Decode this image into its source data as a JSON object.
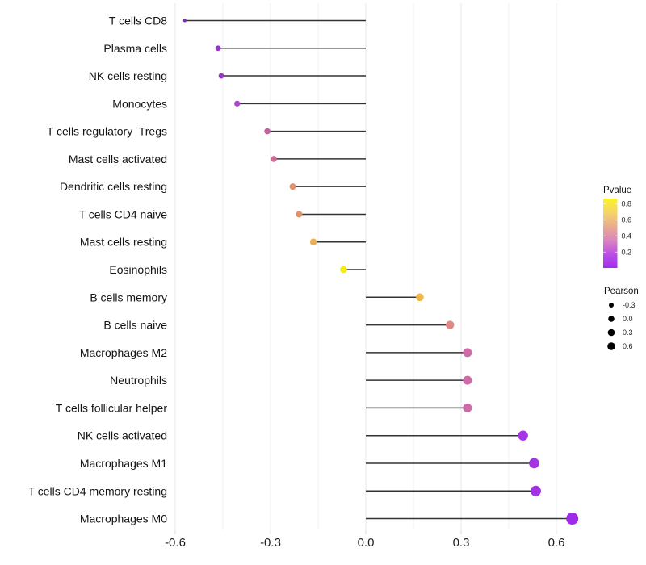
{
  "figure": {
    "background": "#FFFFFF",
    "stem_color": "#333333",
    "gridline_major_color": "#E7E7E7",
    "gridline_minor_color": "#F2F2F2",
    "axis_tick_color": "#DCDCDC"
  },
  "chart_data": {
    "type": "lollipop",
    "title": "",
    "xlabel": "",
    "ylabel": "",
    "orientation": "horizontal",
    "x_range": [
      -0.635,
      0.71
    ],
    "x_ticks": [
      -0.6,
      -0.3,
      0.0,
      0.3,
      0.6
    ],
    "x_tick_labels": [
      "-0.6",
      "-0.3",
      "0.0",
      "0.3",
      "0.6"
    ],
    "x_minor_gridlines": [
      -0.45,
      -0.15,
      0.15,
      0.45
    ],
    "grid": true,
    "color_encoding": "Pvalue",
    "size_encoding": "Pearson",
    "categories": [
      "T cells CD8",
      "Plasma cells",
      "NK cells resting",
      "Monocytes",
      "T cells regulatory  Tregs",
      "Mast cells activated",
      "Dendritic cells resting",
      "T cells CD4 naive",
      "Mast cells resting",
      "Eosinophils",
      "B cells memory",
      "B cells naive",
      "Macrophages M2",
      "Neutrophils",
      "T cells follicular helper",
      "NK cells activated",
      "Macrophages M1",
      "T cells CD4 memory resting",
      "Macrophages M0"
    ],
    "points": [
      {
        "category": "T cells CD8",
        "pearson": -0.57,
        "pvalue_est": 0.05,
        "color": "#7E22C4",
        "dot_radius": 2.0
      },
      {
        "category": "Plasma cells",
        "pearson": -0.465,
        "pvalue_est": 0.13,
        "color": "#9934CA",
        "dot_radius": 3.4
      },
      {
        "category": "NK cells resting",
        "pearson": -0.455,
        "pvalue_est": 0.14,
        "color": "#9B36CA",
        "dot_radius": 3.4
      },
      {
        "category": "Monocytes",
        "pearson": -0.405,
        "pvalue_est": 0.2,
        "color": "#A945CE",
        "dot_radius": 3.6
      },
      {
        "category": "T cells regulatory  Tregs",
        "pearson": -0.31,
        "pvalue_est": 0.32,
        "color": "#C2609D",
        "dot_radius": 3.8
      },
      {
        "category": "Mast cells activated",
        "pearson": -0.29,
        "pvalue_est": 0.35,
        "color": "#CC6B96",
        "dot_radius": 3.8
      },
      {
        "category": "Dendritic cells resting",
        "pearson": -0.23,
        "pvalue_est": 0.5,
        "color": "#E0906C",
        "dot_radius": 4.0
      },
      {
        "category": "T cells CD4 naive",
        "pearson": -0.21,
        "pvalue_est": 0.5,
        "color": "#E0926A",
        "dot_radius": 4.0
      },
      {
        "category": "Mast cells resting",
        "pearson": -0.165,
        "pvalue_est": 0.62,
        "color": "#EAAF55",
        "dot_radius": 4.2
      },
      {
        "category": "Eosinophils",
        "pearson": -0.07,
        "pvalue_est": 0.85,
        "color": "#F1EA13",
        "dot_radius": 4.3
      },
      {
        "category": "B cells memory",
        "pearson": 0.17,
        "pvalue_est": 0.6,
        "color": "#ECB84E",
        "dot_radius": 4.8
      },
      {
        "category": "B cells naive",
        "pearson": 0.265,
        "pvalue_est": 0.45,
        "color": "#E08985",
        "dot_radius": 5.2
      },
      {
        "category": "Macrophages M2",
        "pearson": 0.32,
        "pvalue_est": 0.36,
        "color": "#D069A7",
        "dot_radius": 5.5
      },
      {
        "category": "Neutrophils",
        "pearson": 0.32,
        "pvalue_est": 0.36,
        "color": "#D069A7",
        "dot_radius": 5.5
      },
      {
        "category": "T cells follicular helper",
        "pearson": 0.32,
        "pvalue_est": 0.36,
        "color": "#D069A7",
        "dot_radius": 5.5
      },
      {
        "category": "NK cells activated",
        "pearson": 0.495,
        "pvalue_est": 0.16,
        "color": "#A536E3",
        "dot_radius": 6.2
      },
      {
        "category": "Macrophages M1",
        "pearson": 0.53,
        "pvalue_est": 0.15,
        "color": "#A234E2",
        "dot_radius": 6.3
      },
      {
        "category": "T cells CD4 memory resting",
        "pearson": 0.535,
        "pvalue_est": 0.15,
        "color": "#A133E1",
        "dot_radius": 6.5
      },
      {
        "category": "Macrophages M0",
        "pearson": 0.65,
        "pvalue_est": 0.1,
        "color": "#9E2BE8",
        "dot_radius": 7.5
      }
    ],
    "legends": {
      "pvalue": {
        "title": "Pvalue",
        "tick_labels": [
          "0.8",
          "0.6",
          "0.4",
          "0.2"
        ],
        "gradient_stops": [
          {
            "offset": 0.0,
            "color": "#FBF32A"
          },
          {
            "offset": 0.2,
            "color": "#F5D468"
          },
          {
            "offset": 0.4,
            "color": "#EAAC90"
          },
          {
            "offset": 0.6,
            "color": "#DC85BE"
          },
          {
            "offset": 0.8,
            "color": "#BC4FE6"
          },
          {
            "offset": 1.0,
            "color": "#A32BF2"
          }
        ]
      },
      "pearson": {
        "title": "Pearson",
        "items": [
          {
            "label": "-0.3",
            "dot_radius": 3.0
          },
          {
            "label": "0.0",
            "dot_radius": 3.8
          },
          {
            "label": "0.3",
            "dot_radius": 4.3
          },
          {
            "label": "0.6",
            "dot_radius": 4.8
          }
        ],
        "dot_color": "#000000"
      }
    }
  }
}
